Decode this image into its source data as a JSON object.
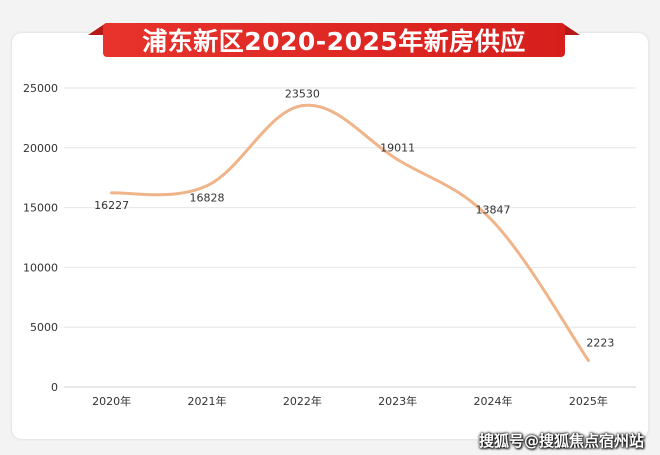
{
  "title": "浦东新区2020-2025年新房供应",
  "watermark": "搜狐号@搜狐焦点宿州站",
  "colors": {
    "line": "#f0b48a",
    "title_bg": "#e8322c",
    "grid": "#e6e6e6",
    "text": "#333333"
  },
  "chart_data": {
    "type": "line",
    "categories": [
      "2020年",
      "2021年",
      "2022年",
      "2023年",
      "2024年",
      "2025年"
    ],
    "series": [
      {
        "values": [
          16227,
          16828,
          23530,
          19011,
          13847,
          2223
        ]
      }
    ],
    "data_labels": [
      "16227",
      "16828",
      "23530",
      "19011",
      "13847",
      "2223"
    ],
    "y_ticks": [
      "0",
      "5000",
      "10000",
      "15000",
      "20000",
      "25000"
    ],
    "ylim": [
      0,
      25000
    ],
    "grid": true,
    "smooth": true
  }
}
